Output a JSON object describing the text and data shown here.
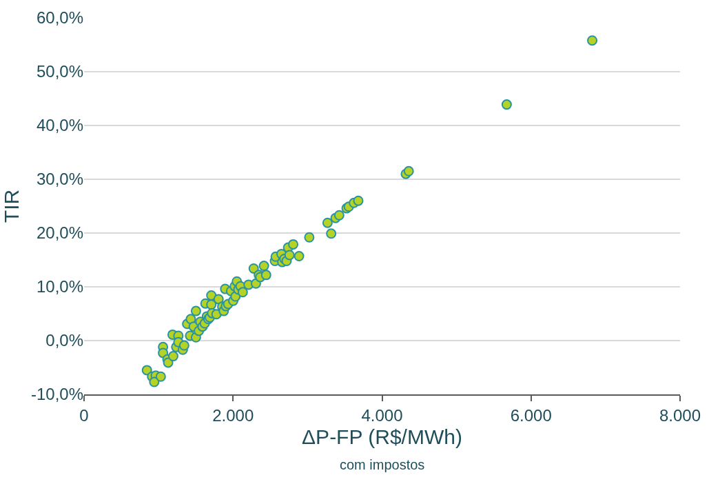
{
  "chart_data": {
    "type": "scatter",
    "xlabel": "ΔP-FP (R$/MWh)",
    "ylabel": "TIR",
    "annotations": [
      "com impostos"
    ],
    "x": [
      844,
      913,
      962,
      942,
      1030,
      1060,
      1060,
      1119,
      1129,
      1188,
      1197,
      1237,
      1266,
      1266,
      1325,
      1344,
      1384,
      1423,
      1433,
      1472,
      1502,
      1502,
      1541,
      1561,
      1590,
      1620,
      1629,
      1649,
      1669,
      1688,
      1708,
      1708,
      1718,
      1777,
      1806,
      1855,
      1875,
      1894,
      1904,
      1934,
      1973,
      2002,
      2022,
      2032,
      2051,
      2071,
      2100,
      2130,
      2208,
      2277,
      2307,
      2346,
      2365,
      2415,
      2444,
      2562,
      2572,
      2650,
      2660,
      2689,
      2719,
      2739,
      2758,
      2807,
      2886,
      3023,
      3268,
      3317,
      3376,
      3425,
      3524,
      3553,
      3622,
      3681,
      4319,
      4358,
      5673,
      6821
    ],
    "series": [
      {
        "color": "#b5d226",
        "values": [
          -5.5,
          -6.7,
          -6.5,
          -7.7,
          -6.7,
          -1.2,
          -2.3,
          -3.5,
          -4.1,
          1.1,
          -2.9,
          -1.2,
          0.9,
          -0.3,
          -1.7,
          -0.9,
          3.1,
          0.9,
          4.0,
          2.6,
          5.5,
          0.6,
          1.8,
          3.5,
          2.6,
          3.2,
          6.9,
          4.5,
          4.0,
          4.3,
          8.4,
          6.7,
          5.1,
          4.9,
          7.7,
          6.3,
          5.5,
          9.6,
          6.4,
          6.8,
          9.2,
          7.4,
          10.1,
          8.2,
          11.0,
          9.5,
          10.1,
          9.0,
          10.4,
          13.4,
          10.6,
          12.2,
          11.8,
          13.9,
          12.2,
          14.8,
          15.6,
          16.1,
          14.6,
          15.2,
          14.8,
          17.3,
          15.9,
          17.9,
          15.7,
          19.2,
          21.9,
          19.9,
          22.8,
          23.3,
          24.6,
          24.9,
          25.6,
          26.0,
          31.0,
          31.5,
          43.9,
          55.8
        ]
      }
    ],
    "xlim": [
      0,
      8000
    ],
    "xticks": [
      0,
      {
        "value": 2000,
        "label": "2.000"
      },
      {
        "value": 4000,
        "label": "4.000"
      },
      {
        "value": 6000,
        "label": "6.000"
      },
      {
        "value": 8000,
        "label": "8.000"
      }
    ],
    "ylim": [
      -10,
      60
    ],
    "yticks": [
      {
        "value": -10,
        "label": "-10,0%"
      },
      {
        "value": 0,
        "label": "0,0%"
      },
      {
        "value": 10,
        "label": "10,0%"
      },
      {
        "value": 20,
        "label": "20,0%"
      },
      {
        "value": 30,
        "label": "30,0%"
      },
      {
        "value": 40,
        "label": "40,0%"
      },
      {
        "value": 50,
        "label": "50,0%"
      },
      {
        "value": 60,
        "label": "60,0%"
      }
    ],
    "grid": "y",
    "marker": "circle"
  }
}
